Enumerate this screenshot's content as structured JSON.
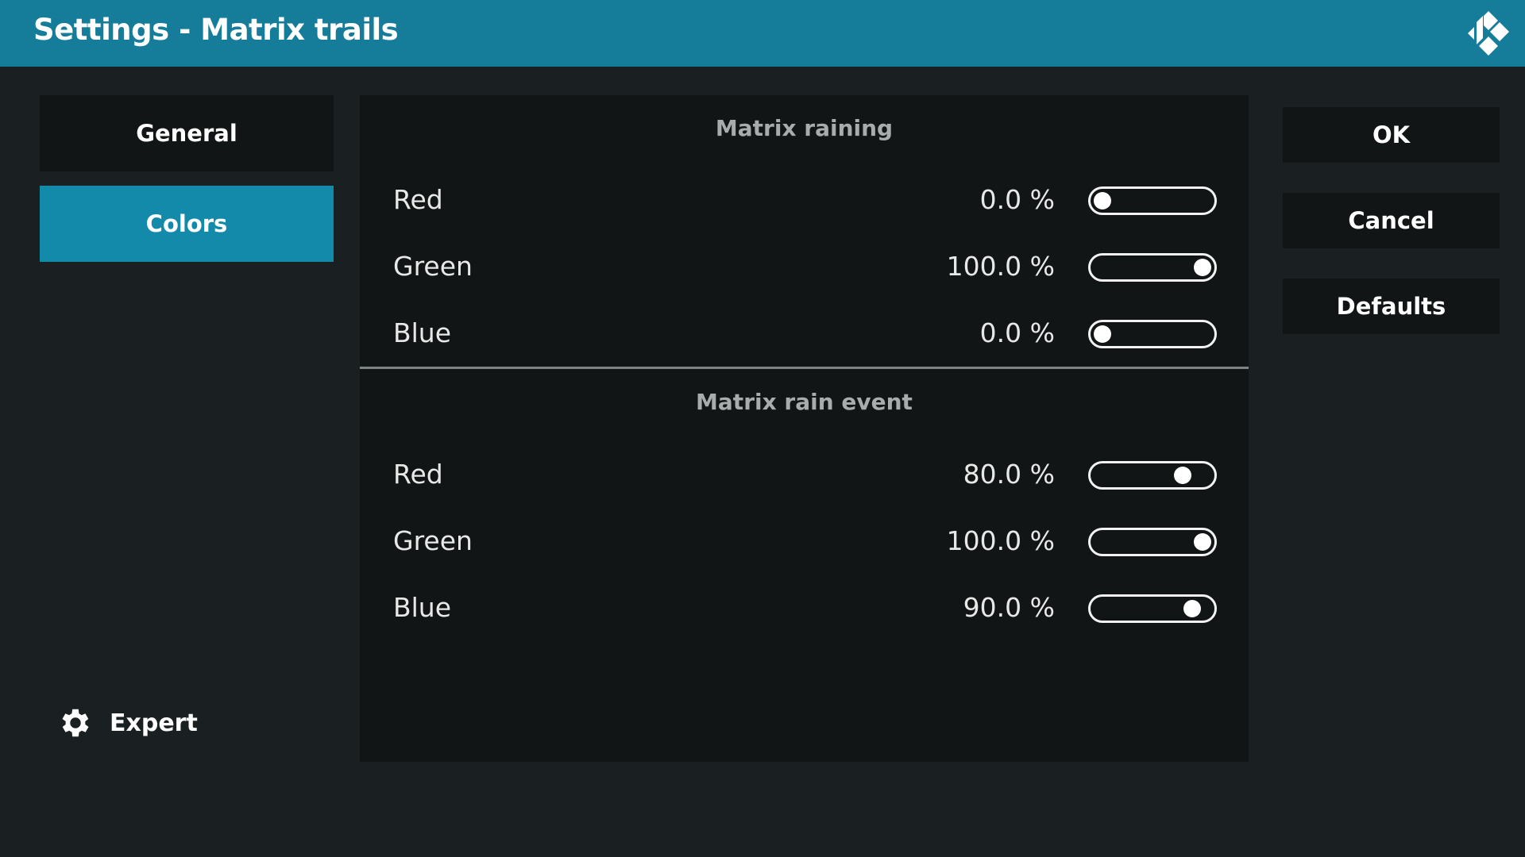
{
  "header": {
    "title": "Settings - Matrix trails",
    "logo_icon": "kodi-logo-icon",
    "color": "#157d99"
  },
  "nav": {
    "items": [
      {
        "label": "General",
        "active": false
      },
      {
        "label": "Colors",
        "active": true
      }
    ],
    "expert_label": "Expert",
    "expert_icon": "gear-icon"
  },
  "sections": [
    {
      "title": "Matrix raining",
      "rows": [
        {
          "label": "Red",
          "value": "0.0 %",
          "percent": 0
        },
        {
          "label": "Green",
          "value": "100.0 %",
          "percent": 100
        },
        {
          "label": "Blue",
          "value": "0.0 %",
          "percent": 0
        }
      ]
    },
    {
      "title": "Matrix rain event",
      "rows": [
        {
          "label": "Red",
          "value": "80.0 %",
          "percent": 80
        },
        {
          "label": "Green",
          "value": "100.0 %",
          "percent": 100
        },
        {
          "label": "Blue",
          "value": "90.0 %",
          "percent": 90
        }
      ]
    }
  ],
  "buttons": {
    "ok": "OK",
    "cancel": "Cancel",
    "defaults": "Defaults"
  },
  "colors": {
    "accent": "#148aab",
    "background": "#1a1f21",
    "panel": "#121515"
  }
}
